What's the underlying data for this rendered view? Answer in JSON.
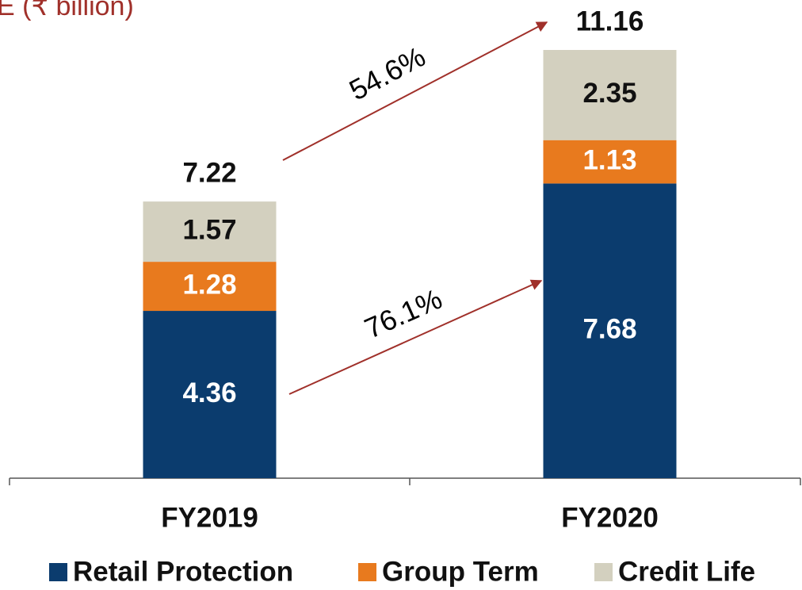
{
  "chart_data": {
    "type": "stacked_bar",
    "title": "E (₹ billion)",
    "categories": [
      "FY2019",
      "FY2020"
    ],
    "series": [
      {
        "name": "Retail Protection",
        "color": "#0b3c6e",
        "values": [
          4.36,
          7.68
        ]
      },
      {
        "name": "Group Term",
        "color": "#e87a1e",
        "values": [
          1.28,
          1.13
        ]
      },
      {
        "name": "Credit Life",
        "color": "#d3d0bf",
        "values": [
          1.57,
          2.35
        ]
      }
    ],
    "totals": [
      7.22,
      11.16
    ],
    "annotations": [
      "54.6%",
      "76.1%"
    ],
    "ylim": [
      0,
      12.4
    ]
  }
}
